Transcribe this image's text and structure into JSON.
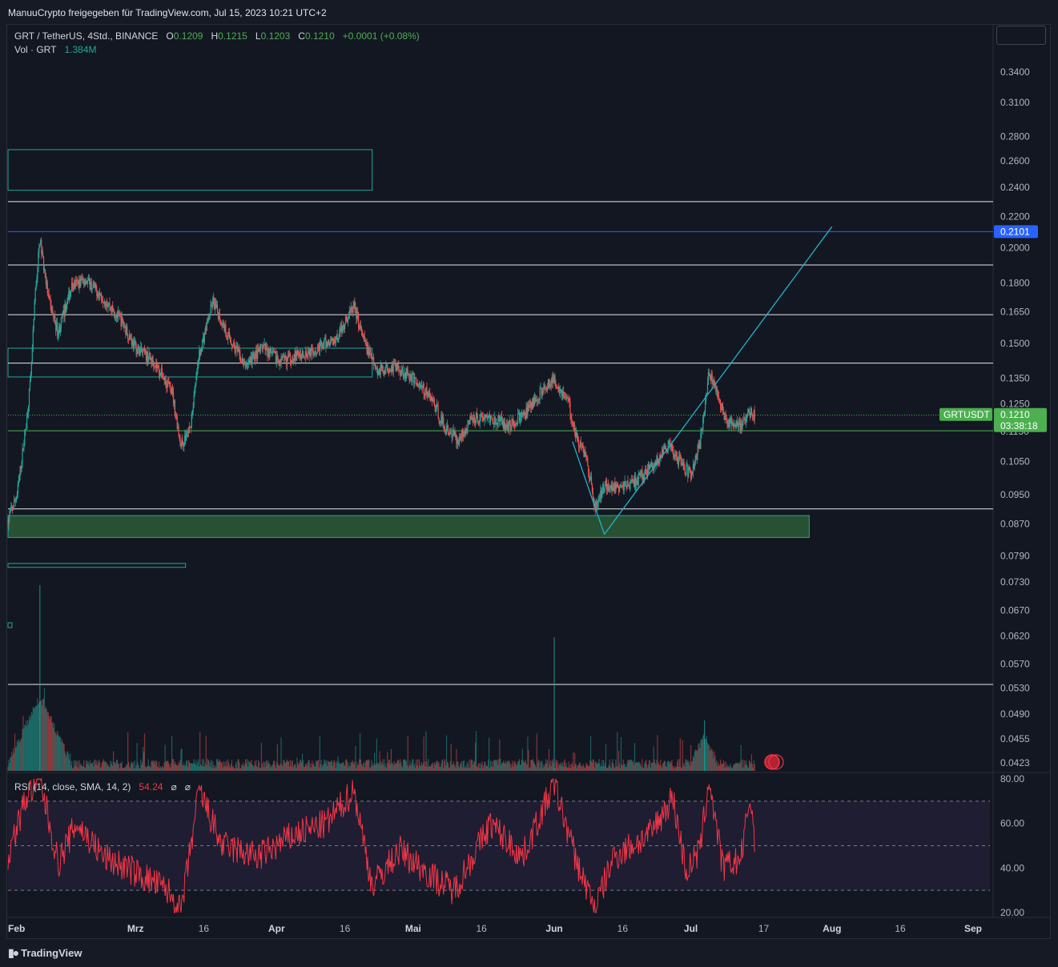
{
  "header": {
    "share_text": "ManuuCrypto freigegeben für TradingView.com, Jul 15, 2023 10:21 UTC+2"
  },
  "legend": {
    "symbol": "GRT / TetherUS, 4Std., BINANCE",
    "o_label": "O",
    "o_value": "0.1209",
    "h_label": "H",
    "h_value": "0.1215",
    "l_label": "L",
    "l_value": "0.1203",
    "c_label": "C",
    "c_value": "0.1210",
    "change": "+0.0001 (+0.08%)",
    "vol_label": "Vol · GRT",
    "vol_value": "1.384M"
  },
  "rsi_legend": {
    "label": "RSI (14, close, SMA, 14, 2)",
    "value": "54.24",
    "extra1": "⌀",
    "extra2": "⌀"
  },
  "footer": {
    "brand": "TradingView"
  },
  "colors": {
    "up": "#26a69a",
    "down": "#ef5350",
    "rsi": "#f23645",
    "price_tag": "#4caf50",
    "blue_level": "#2962ff",
    "trend": "#22b3c9"
  },
  "chart_data": {
    "type": "candlestick",
    "symbol": "GRTUSDT",
    "exchange": "BINANCE",
    "timeframe": "4Std.",
    "y_scale": "log",
    "y_ticks": [
      "0.3400",
      "0.3100",
      "0.2800",
      "0.2600",
      "0.2400",
      "0.2200",
      "0.2000",
      "0.1800",
      "0.1650",
      "0.1500",
      "0.1350",
      "0.1250",
      "0.1050",
      "0.0950",
      "0.0870",
      "0.0790",
      "0.0730",
      "0.0670",
      "0.0620",
      "0.0570",
      "0.0530",
      "0.0490",
      "0.0455",
      "0.0423"
    ],
    "x_ticks": [
      "Feb",
      "Mrz",
      "16",
      "Apr",
      "16",
      "Mai",
      "16",
      "Jun",
      "16",
      "Jul",
      "17",
      "Aug",
      "16",
      "Sep"
    ],
    "x_month_labels": [
      "Feb",
      "Mrz",
      "Apr",
      "Mai",
      "Jun",
      "Jul",
      "Aug",
      "Sep"
    ],
    "last_price": "0.1210",
    "price_tag_label": "GRTUSDT",
    "countdown": "03:38:18",
    "hidden_tick": "0.1150",
    "blue_level_label": "0.2101",
    "horizontal_levels": [
      0.23,
      0.2101,
      0.19,
      0.1635,
      0.1413,
      0.1208,
      0.1152,
      0.091,
      0.0536
    ],
    "zones": [
      {
        "from": "Feb",
        "to": "Apr 22",
        "low": 0.238,
        "high": 0.269
      },
      {
        "from": "Feb",
        "to": "Apr 22",
        "low": 0.1355,
        "high": 0.1478
      },
      {
        "from": "Feb",
        "to": "Jul 27",
        "low": 0.0835,
        "high": 0.0892,
        "filled": true
      },
      {
        "from": "Feb",
        "to": "Mrz 12",
        "low": 0.0763,
        "high": 0.0772
      }
    ],
    "trend_lines": [
      {
        "from": [
          "Jun 5",
          0.1115
        ],
        "to": [
          "Jun 12",
          0.0843
        ]
      },
      {
        "from": [
          "Jun 12",
          0.0843
        ],
        "to": [
          "Aug 1",
          0.2133
        ]
      }
    ],
    "price_path": [
      [
        "Feb 1",
        0.088
      ],
      [
        "Feb 3",
        0.095
      ],
      [
        "Feb 5",
        0.118
      ],
      [
        "Feb 6",
        0.135
      ],
      [
        "Feb 7",
        0.175
      ],
      [
        "Feb 8",
        0.205
      ],
      [
        "Feb 10",
        0.17
      ],
      [
        "Feb 12",
        0.155
      ],
      [
        "Feb 15",
        0.178
      ],
      [
        "Feb 18",
        0.182
      ],
      [
        "Feb 22",
        0.172
      ],
      [
        "Feb 26",
        0.16
      ],
      [
        "Mrz 1",
        0.148
      ],
      [
        "Mrz 5",
        0.142
      ],
      [
        "Mrz 9",
        0.13
      ],
      [
        "Mrz 11",
        0.11
      ],
      [
        "Mrz 13",
        0.116
      ],
      [
        "Mrz 15",
        0.145
      ],
      [
        "Mrz 18",
        0.17
      ],
      [
        "Mrz 21",
        0.155
      ],
      [
        "Mrz 25",
        0.14
      ],
      [
        "Mrz 29",
        0.148
      ],
      [
        "Apr 2",
        0.142
      ],
      [
        "Apr 6",
        0.145
      ],
      [
        "Apr 10",
        0.148
      ],
      [
        "Apr 14",
        0.152
      ],
      [
        "Apr 18",
        0.168
      ],
      [
        "Apr 20",
        0.152
      ],
      [
        "Apr 23",
        0.138
      ],
      [
        "Apr 27",
        0.14
      ],
      [
        "Mai 1",
        0.135
      ],
      [
        "Mai 5",
        0.127
      ],
      [
        "Mai 8",
        0.116
      ],
      [
        "Mai 11",
        0.112
      ],
      [
        "Mai 14",
        0.12
      ],
      [
        "Mai 18",
        0.12
      ],
      [
        "Mai 22",
        0.117
      ],
      [
        "Mai 26",
        0.122
      ],
      [
        "Mai 30",
        0.132
      ],
      [
        "Jun 1",
        0.134
      ],
      [
        "Jun 4",
        0.126
      ],
      [
        "Jun 6",
        0.112
      ],
      [
        "Jun 8",
        0.107
      ],
      [
        "Jun 10",
        0.091
      ],
      [
        "Jun 12",
        0.098
      ],
      [
        "Jun 15",
        0.097
      ],
      [
        "Jun 19",
        0.099
      ],
      [
        "Jun 23",
        0.104
      ],
      [
        "Jun 26",
        0.11
      ],
      [
        "Jun 29",
        0.104
      ],
      [
        "Jul 1",
        0.101
      ],
      [
        "Jul 3",
        0.111
      ],
      [
        "Jul 5",
        0.138
      ],
      [
        "Jul 7",
        0.127
      ],
      [
        "Jul 9",
        0.118
      ],
      [
        "Jul 12",
        0.117
      ],
      [
        "Jul 14",
        0.122
      ],
      [
        "Jul 15",
        0.121
      ]
    ],
    "volume": {
      "label": "Vol · GRT",
      "last": "1.384M",
      "spikes": [
        [
          "Feb 8",
          "max"
        ],
        [
          "Jun 1",
          "high"
        ],
        [
          "Jul 4",
          "medium"
        ]
      ]
    },
    "rsi": {
      "period": 14,
      "last": 54.24,
      "ylim": [
        20,
        80
      ],
      "upper_band": 70,
      "middle_band": 50,
      "lower_band": 30,
      "y_ticks": [
        "80.00",
        "60.00",
        "40.00",
        "20.00"
      ],
      "path": [
        [
          "Feb 1",
          45
        ],
        [
          "Feb 5",
          72
        ],
        [
          "Feb 8",
          80
        ],
        [
          "Feb 12",
          42
        ],
        [
          "Feb 16",
          60
        ],
        [
          "Feb 22",
          45
        ],
        [
          "Mrz 1",
          38
        ],
        [
          "Mrz 8",
          30
        ],
        [
          "Mrz 11",
          20
        ],
        [
          "Mrz 15",
          75
        ],
        [
          "Mrz 20",
          50
        ],
        [
          "Mrz 28",
          45
        ],
        [
          "Apr 5",
          55
        ],
        [
          "Apr 12",
          60
        ],
        [
          "Apr 18",
          75
        ],
        [
          "Apr 22",
          32
        ],
        [
          "Apr 28",
          48
        ],
        [
          "Mai 6",
          35
        ],
        [
          "Mai 10",
          30
        ],
        [
          "Mai 18",
          60
        ],
        [
          "Mai 25",
          45
        ],
        [
          "Jun 1",
          78
        ],
        [
          "Jun 6",
          42
        ],
        [
          "Jun 10",
          22
        ],
        [
          "Jun 14",
          45
        ],
        [
          "Jun 22",
          55
        ],
        [
          "Jun 27",
          72
        ],
        [
          "Jun 30",
          38
        ],
        [
          "Jul 3",
          48
        ],
        [
          "Jul 5",
          80
        ],
        [
          "Jul 8",
          40
        ],
        [
          "Jul 12",
          44
        ],
        [
          "Jul 14",
          72
        ],
        [
          "Jul 15",
          54
        ]
      ]
    }
  }
}
